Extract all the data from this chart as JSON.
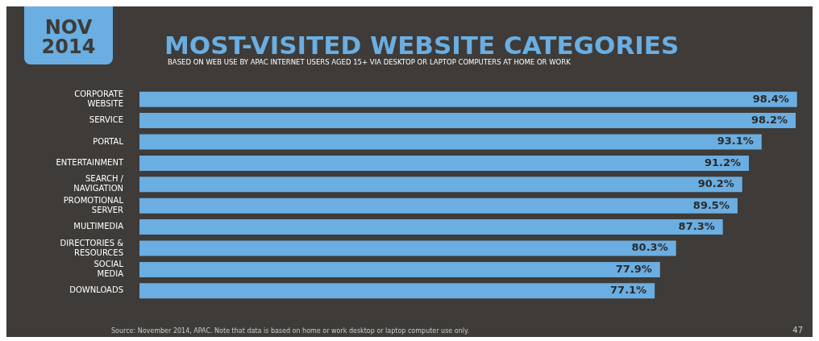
{
  "chart_data": {
    "type": "bar",
    "orientation": "horizontal",
    "title": "MOST-VISITED WEBSITE CATEGORIES",
    "subtitle": "BASED ON WEB USE BY APAC INTERNET USERS AGED 15+ VIA DESKTOP OR LAPTOP COMPUTERS AT HOME OR WORK",
    "categories": [
      "CORPORATE WEBSITE",
      "SERVICE",
      "PORTAL",
      "ENTERTAINMENT",
      "SEARCH / NAVIGATION",
      "PROMOTIONAL SERVER",
      "MULTIMEDIA",
      "DIRECTORIES & RESOURCES",
      "SOCIAL MEDIA",
      "DOWNLOADS"
    ],
    "values": [
      98.4,
      98.2,
      93.1,
      91.2,
      90.2,
      89.5,
      87.3,
      80.3,
      77.9,
      77.1
    ],
    "value_labels": [
      "98.4%",
      "98.2%",
      "93.1%",
      "91.2%",
      "90.2%",
      "89.5%",
      "87.3%",
      "80.3%",
      "77.9%",
      "77.1%"
    ],
    "color": "#6aaee2",
    "tick_labels": "y",
    "annotations": [
      "NOV 2014",
      "Source: November 2014, APAC. Note that data is based on home or work desktop or laptop computer use only.",
      "47"
    ]
  }
}
